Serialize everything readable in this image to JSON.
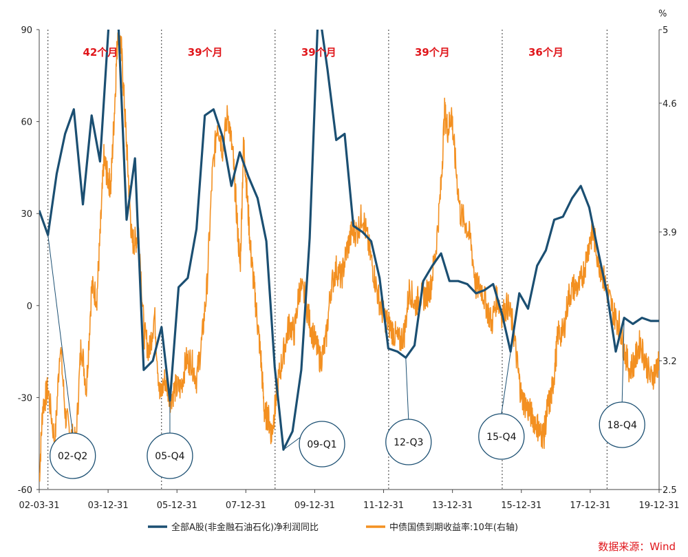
{
  "chart_data": {
    "type": "line",
    "x_ticks": [
      "02-03-31",
      "03-12-31",
      "05-12-31",
      "07-12-31",
      "09-12-31",
      "11-12-31",
      "13-12-31",
      "15-12-31",
      "17-12-31",
      "19-12-31"
    ],
    "y_left": {
      "range": [
        -60,
        90
      ],
      "ticks": [
        90,
        60,
        30,
        0,
        -30,
        -60
      ]
    },
    "y_right": {
      "range": [
        2.5,
        5
      ],
      "unit": "%",
      "ticks": [
        5,
        4.6,
        3.9,
        3.2,
        2.5
      ]
    },
    "period_labels": [
      {
        "text": "42个月",
        "date": 2004.0
      },
      {
        "text": "39个月",
        "date": 2007.0
      },
      {
        "text": "39个月",
        "date": 2010.25
      },
      {
        "text": "39个月",
        "date": 2013.5
      },
      {
        "text": "36个月",
        "date": 2016.75
      }
    ],
    "cycle_lines": [
      2002.5,
      2005.75,
      2009.0,
      2012.25,
      2015.5,
      2018.5
    ],
    "callouts": [
      {
        "text": "02-Q2",
        "date": 2002.5
      },
      {
        "text": "05-Q4",
        "date": 2005.99
      },
      {
        "text": "09-Q1",
        "date": 2009.24
      },
      {
        "text": "12-Q3",
        "date": 2012.74
      },
      {
        "text": "15-Q4",
        "date": 2015.99
      },
      {
        "text": "18-Q4",
        "date": 2018.99
      }
    ],
    "series": [
      {
        "name": "全部A股(非金融石油石化)净利润同比",
        "axis": "left",
        "color": "#1b4f72",
        "x": [
          2002.25,
          2002.5,
          2002.75,
          2002.99,
          2003.24,
          2003.5,
          2003.75,
          2003.99,
          2004.24,
          2004.5,
          2004.75,
          2004.99,
          2005.24,
          2005.5,
          2005.75,
          2005.99,
          2006.24,
          2006.5,
          2006.75,
          2006.99,
          2007.24,
          2007.5,
          2007.75,
          2007.99,
          2008.24,
          2008.5,
          2008.75,
          2008.99,
          2009.24,
          2009.5,
          2009.75,
          2009.99,
          2010.24,
          2010.5,
          2010.75,
          2010.99,
          2011.24,
          2011.5,
          2011.75,
          2011.99,
          2012.24,
          2012.5,
          2012.74,
          2012.99,
          2013.24,
          2013.5,
          2013.75,
          2013.99,
          2014.24,
          2014.5,
          2014.75,
          2014.99,
          2015.24,
          2015.5,
          2015.74,
          2015.99,
          2016.24,
          2016.5,
          2016.75,
          2016.99,
          2017.24,
          2017.5,
          2017.75,
          2017.99,
          2018.24,
          2018.5,
          2018.75,
          2018.99,
          2019.24,
          2019.5,
          2019.75,
          2019.99
        ],
        "values": [
          31,
          23,
          43,
          56,
          64,
          33,
          62,
          47,
          92,
          96,
          28,
          48,
          -21,
          -18,
          -7,
          -31,
          6,
          9,
          25,
          62,
          64,
          55,
          39,
          50,
          42,
          35,
          21,
          -20,
          -47,
          -41,
          -21,
          22,
          98,
          77,
          54,
          56,
          26,
          24,
          21,
          9,
          -14,
          -15,
          -17,
          -13,
          8,
          13,
          17,
          8,
          8,
          7,
          4,
          5,
          7,
          -3,
          -15,
          4,
          -1,
          13,
          18,
          28,
          29,
          35,
          39,
          32,
          18,
          4,
          -15,
          -4,
          -6,
          -4,
          -5,
          -5
        ]
      },
      {
        "name": "中债国债到期收益率:10年(右轴)",
        "axis": "right",
        "color": "#f39021",
        "x": [
          2002.25,
          2002.35,
          2002.5,
          2002.7,
          2002.85,
          2003.0,
          2003.15,
          2003.3,
          2003.45,
          2003.6,
          2003.75,
          2003.9,
          2004.0,
          2004.1,
          2004.2,
          2004.3,
          2004.4,
          2004.5,
          2004.6,
          2004.7,
          2004.8,
          2004.9,
          2005.0,
          2005.1,
          2005.25,
          2005.4,
          2005.55,
          2005.7,
          2005.85,
          2006.0,
          2006.15,
          2006.3,
          2006.45,
          2006.6,
          2006.75,
          2006.9,
          2007.05,
          2007.2,
          2007.35,
          2007.5,
          2007.65,
          2007.8,
          2007.9,
          2008.0,
          2008.1,
          2008.2,
          2008.3,
          2008.4,
          2008.5,
          2008.6,
          2008.7,
          2008.8,
          2008.9,
          2009.0,
          2009.1,
          2009.25,
          2009.4,
          2009.55,
          2009.7,
          2009.85,
          2010.0,
          2010.15,
          2010.3,
          2010.45,
          2010.6,
          2010.75,
          2010.9,
          2011.05,
          2011.2,
          2011.35,
          2011.5,
          2011.65,
          2011.8,
          2011.95,
          2012.1,
          2012.25,
          2012.4,
          2012.55,
          2012.7,
          2012.85,
          2013.0,
          2013.15,
          2013.3,
          2013.45,
          2013.6,
          2013.75,
          2013.85,
          2013.95,
          2014.05,
          2014.15,
          2014.3,
          2014.45,
          2014.6,
          2014.75,
          2014.9,
          2015.05,
          2015.2,
          2015.35,
          2015.5,
          2015.65,
          2015.8,
          2015.95,
          2016.05,
          2016.2,
          2016.35,
          2016.5,
          2016.6,
          2016.7,
          2016.8,
          2016.9,
          2017.0,
          2017.1,
          2017.25,
          2017.4,
          2017.55,
          2017.7,
          2017.85,
          2018.0,
          2018.1,
          2018.25,
          2018.4,
          2018.55,
          2018.7,
          2018.85,
          2019.0,
          2019.15,
          2019.3,
          2019.45,
          2019.6,
          2019.75,
          2019.9,
          2019.99
        ],
        "values": [
          2.55,
          2.95,
          3.05,
          2.75,
          3.3,
          2.9,
          2.8,
          2.75,
          3.3,
          3.05,
          3.6,
          3.55,
          3.9,
          4.3,
          4.2,
          4.15,
          4.55,
          5.0,
          4.9,
          4.55,
          4.2,
          3.85,
          3.85,
          3.9,
          3.35,
          3.25,
          3.45,
          3.0,
          3.1,
          3.0,
          3.05,
          3.05,
          3.2,
          3.2,
          3.1,
          3.3,
          3.6,
          4.2,
          4.5,
          4.35,
          4.55,
          4.3,
          4.0,
          3.7,
          4.4,
          4.1,
          3.8,
          3.6,
          3.4,
          3.2,
          2.9,
          2.9,
          2.8,
          2.95,
          3.1,
          3.25,
          3.4,
          3.35,
          3.6,
          3.55,
          3.4,
          3.3,
          3.2,
          3.3,
          3.6,
          3.7,
          3.65,
          3.8,
          3.9,
          3.9,
          4.0,
          3.85,
          3.7,
          3.55,
          3.45,
          3.4,
          3.35,
          3.3,
          3.35,
          3.6,
          3.5,
          3.55,
          3.55,
          3.6,
          3.8,
          4.15,
          4.55,
          4.45,
          4.55,
          4.3,
          4.0,
          3.95,
          3.85,
          3.6,
          3.6,
          3.5,
          3.4,
          3.55,
          3.45,
          3.5,
          3.4,
          3.15,
          3.0,
          2.95,
          2.9,
          2.85,
          2.8,
          2.8,
          2.95,
          3.0,
          3.15,
          3.35,
          3.35,
          3.55,
          3.6,
          3.6,
          3.7,
          3.85,
          3.9,
          3.75,
          3.65,
          3.55,
          3.45,
          3.4,
          3.25,
          3.15,
          3.2,
          3.3,
          3.2,
          3.1,
          3.15,
          3.2
        ]
      }
    ]
  },
  "legend": {
    "item1": "全部A股(非金融石油石化)净利润同比",
    "item2": "中债国债到期收益率:10年(右轴)"
  },
  "source_note": "数据来源：Wind"
}
